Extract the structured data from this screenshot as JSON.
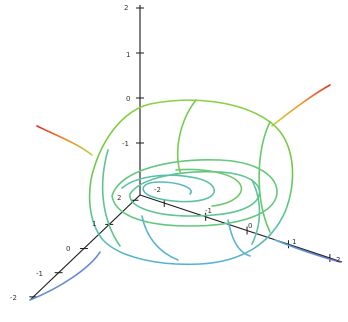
{
  "chart_data": {
    "type": "line",
    "title": "",
    "axes": {
      "z": {
        "ticks": [
          "2",
          "1",
          "0",
          "-1"
        ]
      },
      "x": {
        "ticks": [
          "-2",
          "-1",
          "0",
          "1",
          "2"
        ]
      },
      "y": {
        "ticks": [
          "2",
          "1",
          "0",
          "-1",
          "-2"
        ]
      }
    },
    "colormap": [
      "#e0302a",
      "#f08a2a",
      "#b8d040",
      "#6cc84a",
      "#58c49a",
      "#58b0d8",
      "#6a6ad0"
    ],
    "grid": false,
    "legend": "none"
  }
}
